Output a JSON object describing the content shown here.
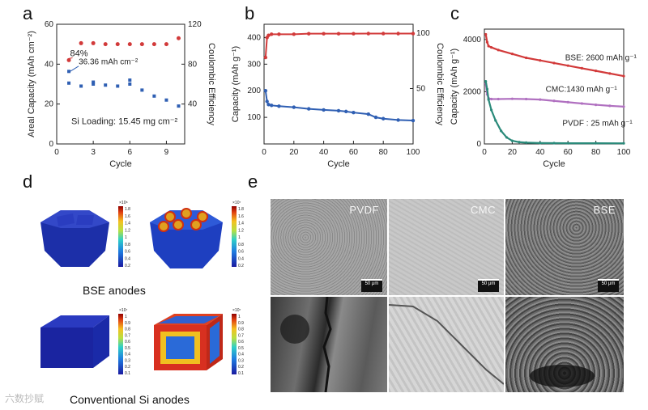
{
  "panels": {
    "a": "a",
    "b": "b",
    "c": "c",
    "d": "d",
    "e": "e"
  },
  "chart_data": [
    {
      "id": "a",
      "type": "scatter",
      "xlabel": "Cycle",
      "ylabel_left": "Areal Capacity (mAh cm⁻²)",
      "ylabel_right": "Coulombic Efficiency",
      "xlim": [
        0,
        10.5
      ],
      "ylim_left": [
        0,
        60
      ],
      "ylim_right": [
        0,
        120
      ],
      "xticks": [
        0,
        3,
        6,
        9
      ],
      "yticks_left": [
        0,
        20,
        40,
        60
      ],
      "yticks_right": [
        40,
        80,
        120
      ],
      "series": [
        {
          "name": "Areal capacity",
          "axis": "left",
          "color": "#2f5fb3",
          "x": [
            1,
            1,
            2,
            3,
            3,
            4,
            5,
            6,
            6,
            7,
            8,
            9,
            10
          ],
          "y": [
            36.36,
            30.5,
            29,
            31,
            30,
            29.5,
            29,
            32,
            30,
            27,
            24,
            22,
            19
          ]
        },
        {
          "name": "Coulombic efficiency",
          "axis": "right",
          "color": "#d23a3a",
          "x": [
            1,
            2,
            3,
            4,
            5,
            6,
            7,
            8,
            9,
            10
          ],
          "y": [
            84,
            101,
            101,
            100,
            100,
            100,
            100,
            100,
            100,
            106
          ]
        }
      ],
      "annotations": [
        "84%",
        "36.36 mAh cm⁻²",
        "Si Loading: 15.45 mg cm⁻²"
      ]
    },
    {
      "id": "b",
      "type": "scatter",
      "xlabel": "Cycle",
      "ylabel_left": "Capacity (mAh g⁻¹)",
      "ylabel_right": "Coulombic Efficiency",
      "xlim": [
        0,
        100
      ],
      "ylim_left": [
        0,
        450
      ],
      "ylim_right": [
        0,
        108
      ],
      "xticks": [
        0,
        20,
        40,
        60,
        80,
        100
      ],
      "yticks_left": [
        100,
        200,
        300,
        400
      ],
      "yticks_right": [
        50,
        100
      ],
      "series": [
        {
          "name": "Capacity",
          "axis": "left",
          "color": "#2f5fb3",
          "x": [
            1,
            2,
            3,
            5,
            10,
            20,
            30,
            40,
            50,
            55,
            60,
            70,
            75,
            80,
            90,
            100
          ],
          "y": [
            200,
            160,
            148,
            145,
            142,
            138,
            132,
            128,
            125,
            122,
            118,
            112,
            100,
            95,
            90,
            88
          ]
        },
        {
          "name": "Coulombic efficiency",
          "axis": "right",
          "color": "#d23a3a",
          "x": [
            1,
            2,
            3,
            5,
            10,
            20,
            30,
            40,
            50,
            60,
            70,
            80,
            90,
            100
          ],
          "y": [
            78,
            96,
            98,
            99,
            99,
            99,
            99.5,
            99.5,
            99.5,
            99.5,
            99.6,
            99.6,
            99.6,
            99.6
          ]
        }
      ]
    },
    {
      "id": "c",
      "type": "line",
      "xlabel": "Cycle",
      "ylabel": "Capacity (mAh g⁻¹)",
      "xlim": [
        0,
        100
      ],
      "ylim": [
        0,
        4400
      ],
      "xticks": [
        0,
        20,
        40,
        60,
        80,
        100
      ],
      "yticks": [
        0,
        2000,
        4000
      ],
      "series": [
        {
          "name": "BSE: 2600 mAh g⁻¹",
          "color": "#d23a3a",
          "x": [
            1,
            2,
            3,
            5,
            10,
            20,
            30,
            40,
            50,
            60,
            70,
            80,
            90,
            100
          ],
          "y": [
            4200,
            3900,
            3750,
            3700,
            3600,
            3450,
            3300,
            3200,
            3100,
            3000,
            2900,
            2800,
            2700,
            2600
          ]
        },
        {
          "name": "CMC:1430 mAh g⁻¹",
          "color": "#b070c0",
          "x": [
            1,
            2,
            3,
            5,
            10,
            20,
            30,
            40,
            50,
            60,
            70,
            80,
            90,
            100
          ],
          "y": [
            2300,
            1900,
            1750,
            1720,
            1720,
            1730,
            1720,
            1700,
            1650,
            1600,
            1550,
            1500,
            1460,
            1430
          ]
        },
        {
          "name": "PVDF : 25 mAh g⁻¹",
          "color": "#2a8a7a",
          "x": [
            1,
            2,
            3,
            5,
            8,
            12,
            16,
            20,
            25,
            30,
            40,
            50,
            60,
            80,
            100
          ],
          "y": [
            2400,
            2100,
            1700,
            1300,
            900,
            500,
            250,
            120,
            70,
            50,
            35,
            30,
            28,
            26,
            25
          ]
        }
      ]
    }
  ],
  "panel_d": {
    "top_caption": "BSE anodes",
    "bottom_caption": "Conventional Si anodes",
    "colorbar_top_left": {
      "exp": "×10⁸",
      "ticks": [
        "1.8",
        "1.6",
        "1.4",
        "1.2",
        "1",
        "0.8",
        "0.6",
        "0.4",
        "0.2"
      ]
    },
    "colorbar_top_right": {
      "exp": "×10⁷",
      "ticks": [
        "1.8",
        "1.6",
        "1.4",
        "1.2",
        "1",
        "0.8",
        "0.6",
        "0.4",
        "0.2"
      ]
    },
    "colorbar_bottom_left": {
      "exp": "×10⁷",
      "ticks": [
        "1",
        "0.9",
        "0.8",
        "0.7",
        "0.6",
        "0.5",
        "0.4",
        "0.3",
        "0.2",
        "0.1"
      ]
    },
    "colorbar_bottom_right": {
      "exp": "×10⁷",
      "ticks": [
        "1",
        "0.9",
        "0.8",
        "0.7",
        "0.6",
        "0.5",
        "0.4",
        "0.3",
        "0.2",
        "0.1"
      ]
    }
  },
  "panel_e": {
    "labels": [
      "PVDF",
      "CMC",
      "BSE"
    ],
    "scale_bar": "50 μm"
  },
  "watermark": "六数抄赋"
}
